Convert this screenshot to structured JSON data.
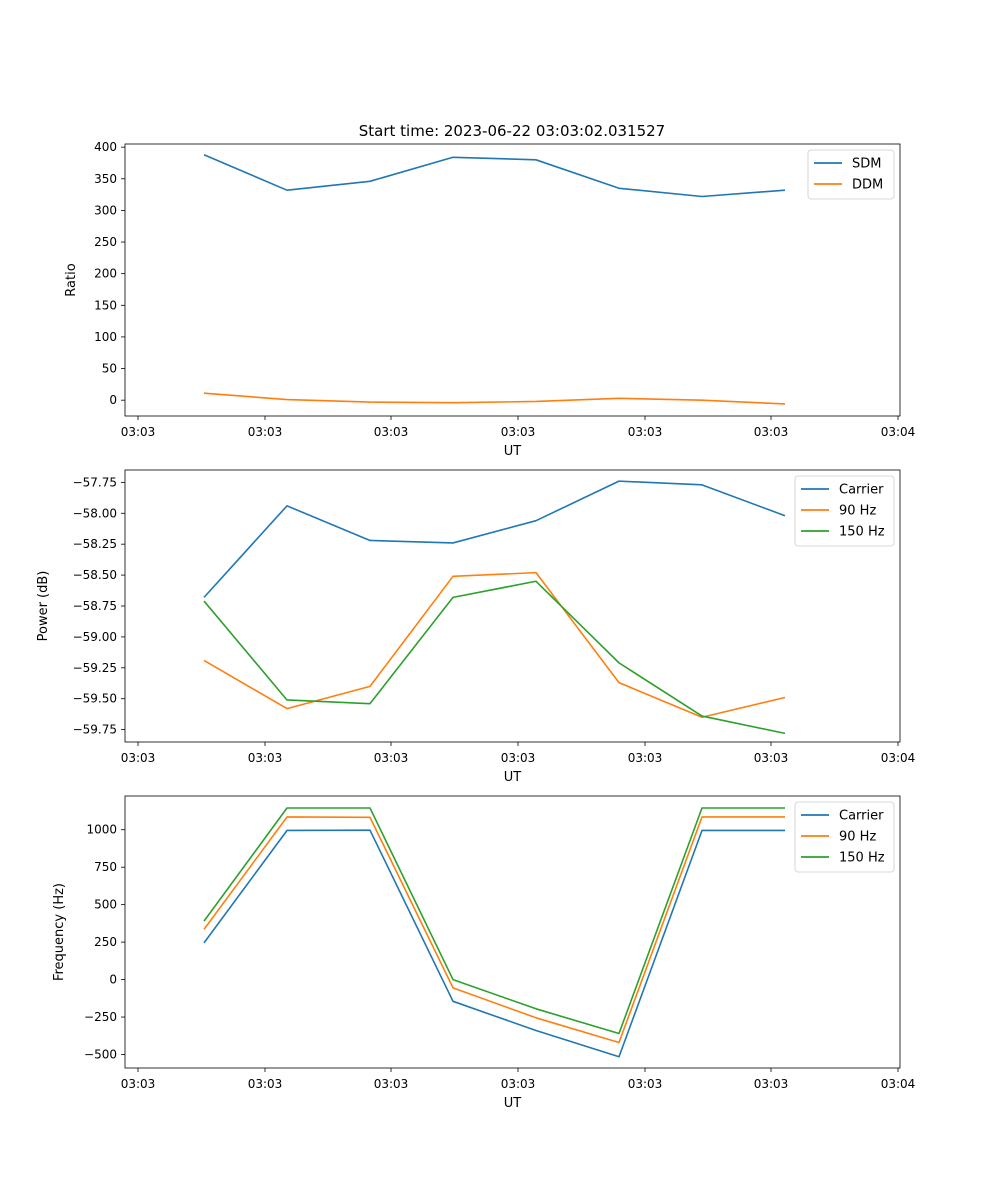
{
  "figure": {
    "title": "Start time: 2023-06-22 03:03:02.031527"
  },
  "colors": {
    "blue": "#1f77b4",
    "orange": "#ff7f0e",
    "green": "#2ca02c"
  },
  "chart_data": [
    {
      "type": "line",
      "title": "Start time: 2023-06-22 03:03:02.031527",
      "xlabel": "UT",
      "ylabel": "Ratio",
      "xticks": [
        "03:03",
        "03:03",
        "03:03",
        "03:03",
        "03:03",
        "03:03",
        "03:04"
      ],
      "yticks": [
        0,
        50,
        100,
        150,
        200,
        250,
        300,
        350,
        400
      ],
      "ylim": [
        -25,
        405
      ],
      "grid": false,
      "legend": "top-right",
      "series": [
        {
          "name": "SDM",
          "color": "#1f77b4",
          "values": [
            388,
            332,
            346,
            384,
            380,
            335,
            322,
            332
          ]
        },
        {
          "name": "DDM",
          "color": "#ff7f0e",
          "values": [
            11,
            1,
            -3,
            -4,
            -2,
            3,
            0,
            -6
          ]
        }
      ]
    },
    {
      "type": "line",
      "title": "",
      "xlabel": "UT",
      "ylabel": "Power (dB)",
      "xticks": [
        "03:03",
        "03:03",
        "03:03",
        "03:03",
        "03:03",
        "03:03",
        "03:04"
      ],
      "yticks": [
        -57.75,
        -58.0,
        -58.25,
        -58.5,
        -58.75,
        -59.0,
        -59.25,
        -59.5,
        -59.75
      ],
      "ylim": [
        -59.85,
        -57.65
      ],
      "grid": false,
      "legend": "top-right",
      "series": [
        {
          "name": "Carrier",
          "color": "#1f77b4",
          "values": [
            -58.68,
            -57.94,
            -58.22,
            -58.24,
            -58.06,
            -57.74,
            -57.77,
            -58.02
          ]
        },
        {
          "name": "90 Hz",
          "color": "#ff7f0e",
          "values": [
            -59.19,
            -59.58,
            -59.4,
            -58.51,
            -58.48,
            -59.37,
            -59.65,
            -59.49
          ]
        },
        {
          "name": "150 Hz",
          "color": "#2ca02c",
          "values": [
            -58.71,
            -59.51,
            -59.54,
            -58.68,
            -58.55,
            -59.21,
            -59.64,
            -59.78
          ]
        }
      ]
    },
    {
      "type": "line",
      "title": "",
      "xlabel": "UT",
      "ylabel": "Frequency (Hz)",
      "xticks": [
        "03:03",
        "03:03",
        "03:03",
        "03:03",
        "03:03",
        "03:03",
        "03:04"
      ],
      "yticks": [
        -500,
        -250,
        0,
        250,
        500,
        750,
        1000
      ],
      "ylim": [
        -590,
        1225
      ],
      "grid": false,
      "legend": "top-right",
      "series": [
        {
          "name": "Carrier",
          "color": "#1f77b4",
          "values": [
            245,
            995,
            997,
            -145,
            -340,
            -515,
            995,
            995
          ]
        },
        {
          "name": "90 Hz",
          "color": "#ff7f0e",
          "values": [
            335,
            1085,
            1083,
            -55,
            -255,
            -420,
            1085,
            1085
          ]
        },
        {
          "name": "150 Hz",
          "color": "#2ca02c",
          "values": [
            390,
            1145,
            1145,
            0,
            -195,
            -360,
            1145,
            1145
          ]
        }
      ]
    }
  ]
}
